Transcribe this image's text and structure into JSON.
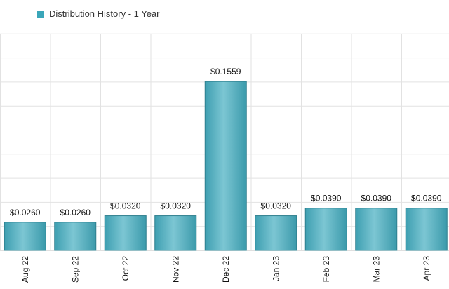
{
  "chart_data": {
    "type": "bar",
    "title": "",
    "xlabel": "",
    "ylabel": "",
    "ylim": [
      0,
      0.2
    ],
    "categories": [
      "Aug 22",
      "Sep 22",
      "Oct 22",
      "Nov 22",
      "Dec 22",
      "Jan 23",
      "Feb 23",
      "Mar 23",
      "Apr 23"
    ],
    "series": [
      {
        "name": "Distribution History - 1 Year",
        "values": [
          0.026,
          0.026,
          0.032,
          0.032,
          0.1559,
          0.032,
          0.039,
          0.039,
          0.039
        ],
        "value_labels": [
          "$0.0260",
          "$0.0260",
          "$0.0320",
          "$0.0320",
          "$0.1559",
          "$0.0320",
          "$0.0390",
          "$0.0390",
          "$0.0390"
        ]
      }
    ],
    "grid": true,
    "legend_position": "top-left",
    "colors": {
      "bar": "#4fb3c4",
      "bar_edge": "#2e7f8e",
      "legend": "#3aa6b9"
    }
  }
}
